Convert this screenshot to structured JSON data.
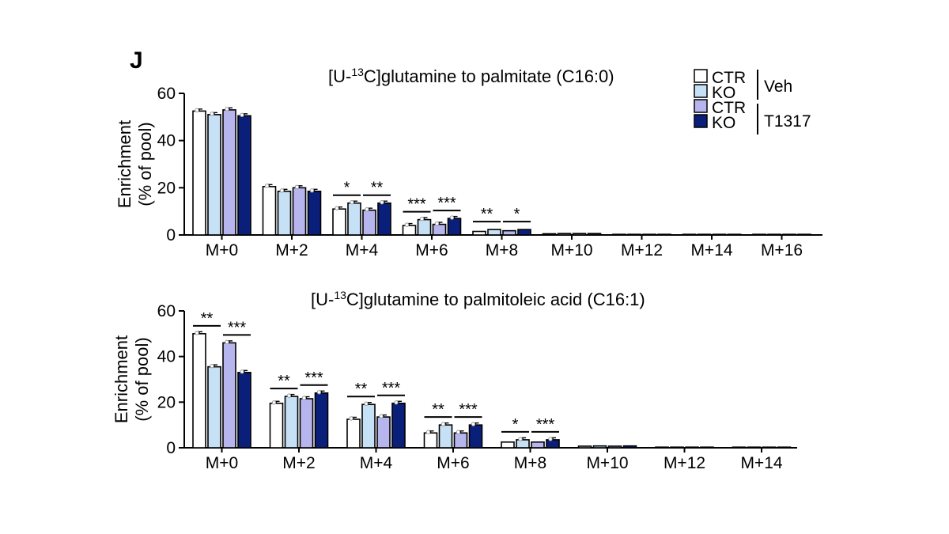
{
  "panel_label": "J",
  "legend": {
    "entries": [
      {
        "label": "CTR",
        "color": "#ffffff"
      },
      {
        "label": "KO",
        "color": "#c6e0f5"
      },
      {
        "label": "CTR",
        "color": "#b7b5ee"
      },
      {
        "label": "KO",
        "color": "#0a1f7a"
      }
    ],
    "groups": [
      "Veh",
      "T1317"
    ]
  },
  "chart_data": [
    {
      "type": "bar",
      "title_prefix": "[U-",
      "title_sup": "13",
      "title_suffix": "C]glutamine to palmitate (C16:0)",
      "ylabel_line1": "Enrichment",
      "ylabel_line2": "(% of pool)",
      "ylim": [
        0,
        60
      ],
      "yticks": [
        0,
        20,
        40,
        60
      ],
      "categories": [
        "M+0",
        "M+2",
        "M+4",
        "M+6",
        "M+8",
        "M+10",
        "M+12",
        "M+14",
        "M+16"
      ],
      "series": [
        {
          "name": "CTR Veh",
          "color": "#ffffff",
          "values": [
            52.5,
            20.5,
            11.0,
            4.0,
            1.5,
            0.5,
            0.2,
            0.1,
            0.1
          ]
        },
        {
          "name": "KO Veh",
          "color": "#c6e0f5",
          "values": [
            51.0,
            18.5,
            13.5,
            6.5,
            2.3,
            0.6,
            0.2,
            0.1,
            0.1
          ]
        },
        {
          "name": "CTR T1317",
          "color": "#b7b5ee",
          "values": [
            53.0,
            20.0,
            10.5,
            4.5,
            1.8,
            0.6,
            0.2,
            0.1,
            0.1
          ]
        },
        {
          "name": "KO T1317",
          "color": "#0a1f7a",
          "values": [
            50.5,
            18.5,
            13.5,
            7.0,
            2.3,
            0.6,
            0.2,
            0.1,
            0.1
          ]
        }
      ],
      "significance": [
        {
          "category": 2,
          "pair": "veh",
          "label": "*"
        },
        {
          "category": 2,
          "pair": "t1317",
          "label": "**"
        },
        {
          "category": 3,
          "pair": "veh",
          "label": "***"
        },
        {
          "category": 3,
          "pair": "t1317",
          "label": "***"
        },
        {
          "category": 4,
          "pair": "veh",
          "label": "**"
        },
        {
          "category": 4,
          "pair": "t1317",
          "label": "*"
        }
      ]
    },
    {
      "type": "bar",
      "title_prefix": "[U-",
      "title_sup": "13",
      "title_suffix": "C]glutamine to palmitoleic acid (C16:1)",
      "ylabel_line1": "Enrichment",
      "ylabel_line2": "(% of pool)",
      "ylim": [
        0,
        60
      ],
      "yticks": [
        0,
        20,
        40,
        60
      ],
      "categories": [
        "M+0",
        "M+2",
        "M+4",
        "M+6",
        "M+8",
        "M+10",
        "M+12",
        "M+14"
      ],
      "series": [
        {
          "name": "CTR Veh",
          "color": "#ffffff",
          "values": [
            50.0,
            19.5,
            12.5,
            6.5,
            2.5,
            0.7,
            0.2,
            0.1
          ]
        },
        {
          "name": "KO Veh",
          "color": "#c6e0f5",
          "values": [
            35.5,
            22.5,
            19.0,
            10.0,
            3.5,
            0.8,
            0.2,
            0.1
          ]
        },
        {
          "name": "CTR T1317",
          "color": "#b7b5ee",
          "values": [
            46.0,
            21.5,
            13.5,
            6.5,
            2.5,
            0.7,
            0.2,
            0.1
          ]
        },
        {
          "name": "KO T1317",
          "color": "#0a1f7a",
          "values": [
            33.0,
            24.0,
            19.5,
            10.0,
            3.5,
            0.8,
            0.2,
            0.1
          ]
        }
      ],
      "significance": [
        {
          "category": 0,
          "pair": "veh",
          "label": "**"
        },
        {
          "category": 0,
          "pair": "t1317",
          "label": "***"
        },
        {
          "category": 1,
          "pair": "veh",
          "label": "**"
        },
        {
          "category": 1,
          "pair": "t1317",
          "label": "***"
        },
        {
          "category": 2,
          "pair": "veh",
          "label": "**"
        },
        {
          "category": 2,
          "pair": "t1317",
          "label": "***"
        },
        {
          "category": 3,
          "pair": "veh",
          "label": "**"
        },
        {
          "category": 3,
          "pair": "t1317",
          "label": "***"
        },
        {
          "category": 4,
          "pair": "veh",
          "label": "*"
        },
        {
          "category": 4,
          "pair": "t1317",
          "label": "***"
        }
      ]
    }
  ]
}
